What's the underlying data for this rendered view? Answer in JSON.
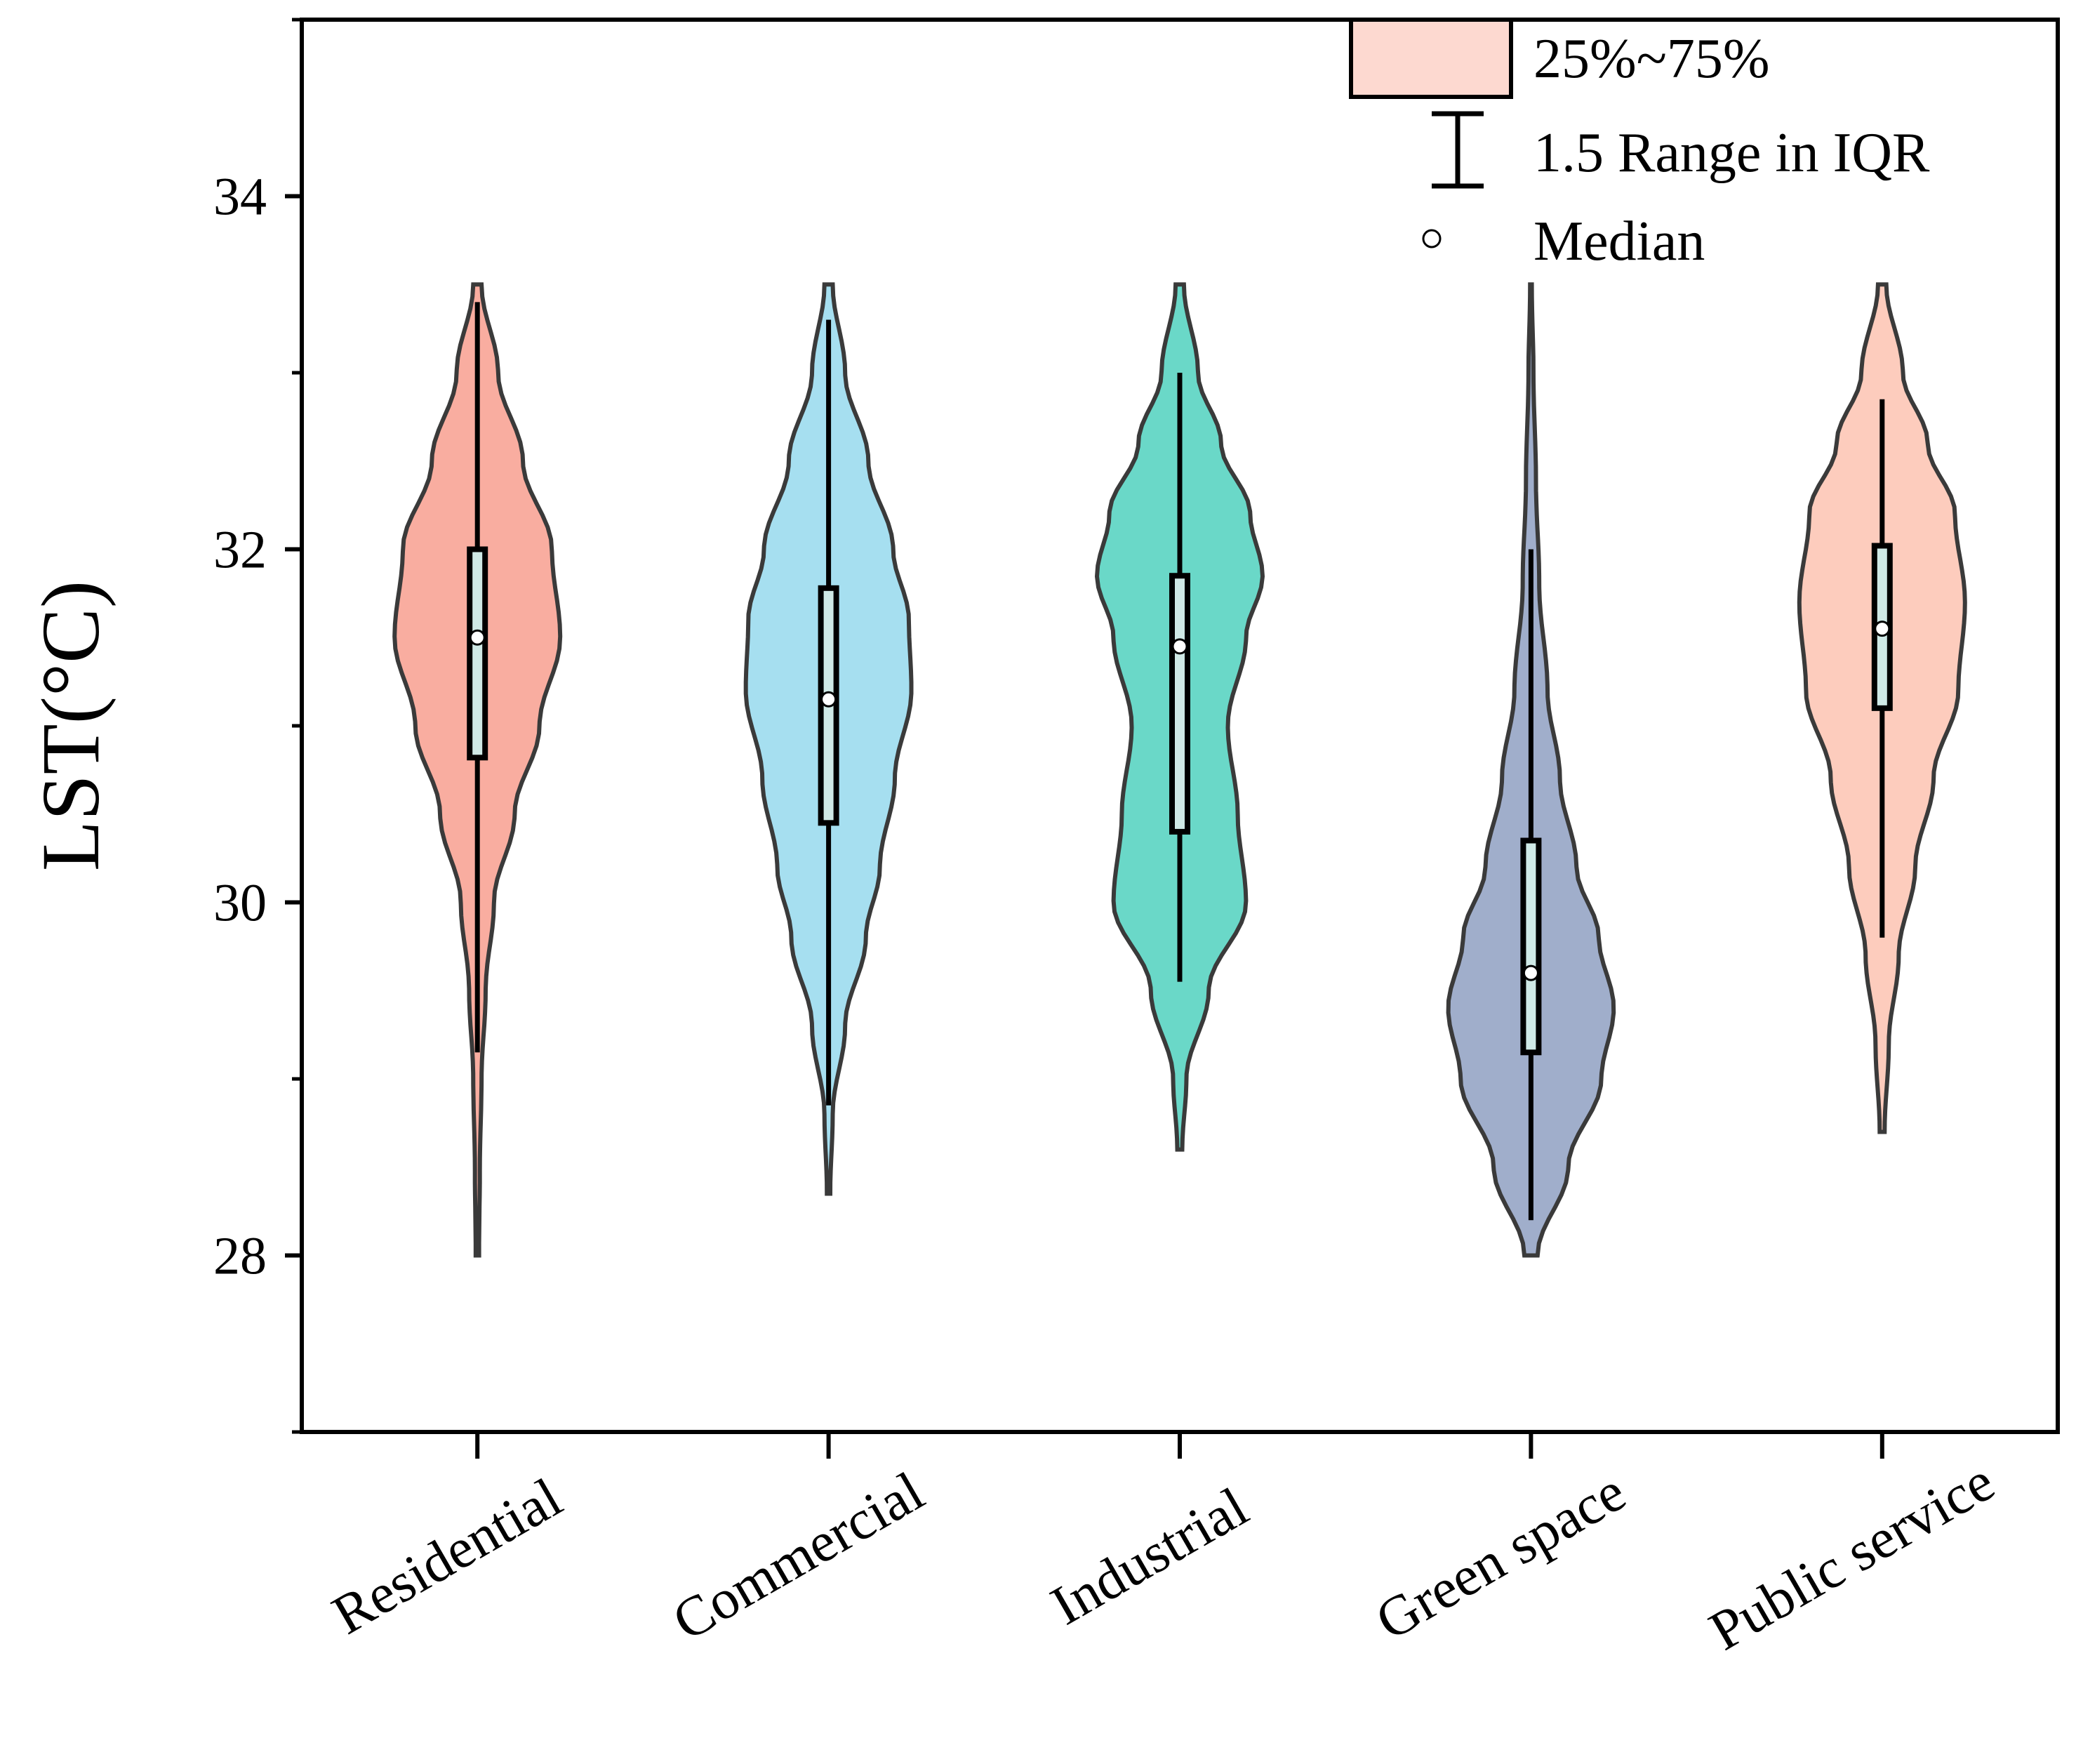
{
  "chart_data": {
    "type": "violin",
    "ylabel": "LST(°C)",
    "ylim": [
      27,
      35
    ],
    "yticks": [
      28,
      30,
      32,
      34
    ],
    "categories": [
      "Residential",
      "Commercial",
      "Industrial",
      "Green space",
      "Public service"
    ],
    "series": [
      {
        "category": "Residential",
        "color": "#f9ada0",
        "q1": 30.82,
        "median": 31.5,
        "q3": 32.0,
        "whisker_low": 29.15,
        "whisker_high": 33.4,
        "min": 28.0,
        "max": 33.5,
        "density": [
          [
            28.0,
            0.02
          ],
          [
            28.5,
            0.03
          ],
          [
            29.0,
            0.05
          ],
          [
            29.5,
            0.1
          ],
          [
            30.0,
            0.2
          ],
          [
            30.5,
            0.45
          ],
          [
            31.0,
            0.75
          ],
          [
            31.5,
            1.0
          ],
          [
            32.0,
            0.9
          ],
          [
            32.5,
            0.55
          ],
          [
            33.0,
            0.25
          ],
          [
            33.5,
            0.05
          ]
        ]
      },
      {
        "category": "Commercial",
        "color": "#a6dff0",
        "q1": 30.45,
        "median": 31.15,
        "q3": 31.78,
        "whisker_low": 28.85,
        "whisker_high": 33.3,
        "min": 28.35,
        "max": 33.5,
        "density": [
          [
            28.35,
            0.02
          ],
          [
            28.8,
            0.05
          ],
          [
            29.3,
            0.2
          ],
          [
            29.8,
            0.45
          ],
          [
            30.2,
            0.62
          ],
          [
            30.7,
            0.8
          ],
          [
            31.2,
            1.0
          ],
          [
            31.6,
            0.97
          ],
          [
            32.0,
            0.78
          ],
          [
            32.5,
            0.48
          ],
          [
            33.0,
            0.2
          ],
          [
            33.5,
            0.05
          ]
        ]
      },
      {
        "category": "Industrial",
        "color": "#6ad8c8",
        "q1": 30.4,
        "median": 31.45,
        "q3": 31.85,
        "whisker_low": 29.55,
        "whisker_high": 33.0,
        "min": 28.6,
        "max": 33.5,
        "density": [
          [
            28.6,
            0.03
          ],
          [
            29.0,
            0.08
          ],
          [
            29.5,
            0.35
          ],
          [
            30.0,
            0.8
          ],
          [
            30.5,
            0.7
          ],
          [
            31.0,
            0.58
          ],
          [
            31.5,
            0.8
          ],
          [
            31.85,
            1.0
          ],
          [
            32.2,
            0.85
          ],
          [
            32.6,
            0.5
          ],
          [
            33.0,
            0.22
          ],
          [
            33.5,
            0.05
          ]
        ]
      },
      {
        "category": "Green space",
        "color": "#a0aecb",
        "q1": 29.15,
        "median": 29.6,
        "q3": 30.35,
        "whisker_low": 28.2,
        "whisker_high": 32.0,
        "min": 28.0,
        "max": 33.5,
        "density": [
          [
            28.0,
            0.08
          ],
          [
            28.5,
            0.45
          ],
          [
            29.0,
            0.85
          ],
          [
            29.4,
            1.0
          ],
          [
            29.8,
            0.82
          ],
          [
            30.2,
            0.55
          ],
          [
            30.7,
            0.35
          ],
          [
            31.2,
            0.2
          ],
          [
            31.8,
            0.1
          ],
          [
            32.4,
            0.06
          ],
          [
            33.0,
            0.03
          ],
          [
            33.5,
            0.01
          ]
        ]
      },
      {
        "category": "Public service",
        "color": "#fdccbd",
        "q1": 31.1,
        "median": 31.55,
        "q3": 32.02,
        "whisker_low": 29.8,
        "whisker_high": 32.85,
        "min": 28.7,
        "max": 33.5,
        "density": [
          [
            28.7,
            0.03
          ],
          [
            29.2,
            0.08
          ],
          [
            29.7,
            0.2
          ],
          [
            30.2,
            0.4
          ],
          [
            30.7,
            0.62
          ],
          [
            31.2,
            0.92
          ],
          [
            31.7,
            1.0
          ],
          [
            32.2,
            0.88
          ],
          [
            32.6,
            0.55
          ],
          [
            33.0,
            0.25
          ],
          [
            33.5,
            0.05
          ]
        ]
      }
    ],
    "legend": {
      "position": "top-right",
      "box_label": "25%~75%",
      "whisker_label": "1.5 Range in IQR",
      "median_label": "Median"
    }
  }
}
